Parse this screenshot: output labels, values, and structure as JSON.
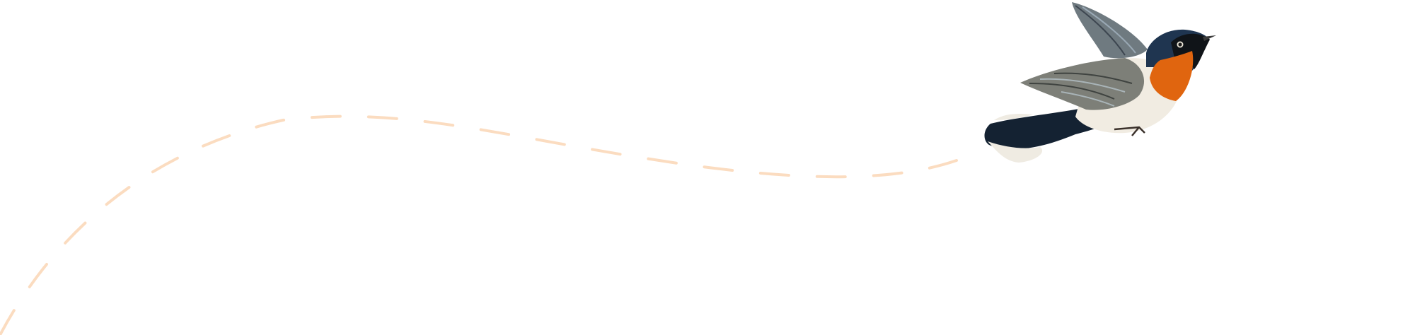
{
  "scene": {
    "background": "#ffffff",
    "flight_path": {
      "style": "dashed",
      "color": "#fbdcc0"
    },
    "bird": {
      "icon": "bird-illustration",
      "colors": {
        "head_back": "#1f3550",
        "throat_breast": "#e0650f",
        "belly": "#f1ece2",
        "wing": "#7d7f78",
        "tail": "#142232",
        "tail_tips": "#efebe2",
        "beak": "#3a3a3a"
      }
    }
  }
}
